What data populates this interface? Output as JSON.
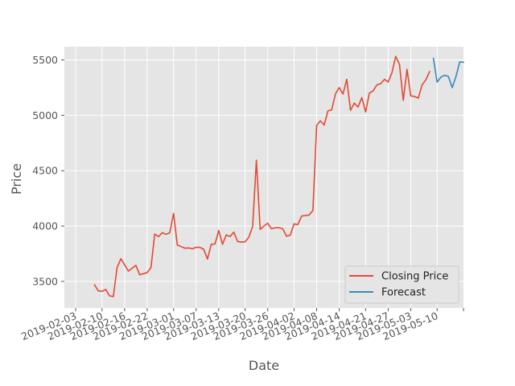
{
  "chart_data": {
    "type": "line",
    "title": "",
    "xlabel": "Date",
    "ylabel": "Price",
    "xlim": [
      "2019-01-31",
      "2019-05-17"
    ],
    "ylim": [
      3260,
      5620
    ],
    "grid": true,
    "legend_position": "bottom-right",
    "x_tick_labels": [
      "2019-02-03",
      "2019-02-10",
      "2019-02-16",
      "2019-02-22",
      "2019-03-01",
      "2019-03-07",
      "2019-03-13",
      "2019-03-20",
      "2019-03-26",
      "2019-04-02",
      "2019-04-08",
      "2019-04-14",
      "2019-04-21",
      "2019-04-27",
      "2019-05-03",
      "2019-05-10"
    ],
    "y_ticks": [
      3500,
      4000,
      4500,
      5000,
      5500
    ],
    "y_tick_labels": [
      "3500",
      "4000",
      "4500",
      "5000",
      "5500"
    ],
    "series": [
      {
        "name": "Closing Price",
        "color": "#E24A33",
        "points": [
          [
            "2019-02-08",
            3470
          ],
          [
            "2019-02-09",
            3415
          ],
          [
            "2019-02-10",
            3410
          ],
          [
            "2019-02-11",
            3428
          ],
          [
            "2019-02-12",
            3370
          ],
          [
            "2019-02-13",
            3363
          ],
          [
            "2019-02-14",
            3625
          ],
          [
            "2019-02-15",
            3705
          ],
          [
            "2019-02-16",
            3650
          ],
          [
            "2019-02-17",
            3593
          ],
          [
            "2019-02-19",
            3645
          ],
          [
            "2019-02-20",
            3560
          ],
          [
            "2019-02-21",
            3570
          ],
          [
            "2019-02-22",
            3580
          ],
          [
            "2019-02-23",
            3625
          ],
          [
            "2019-02-24",
            3928
          ],
          [
            "2019-02-25",
            3905
          ],
          [
            "2019-02-26",
            3940
          ],
          [
            "2019-02-27",
            3925
          ],
          [
            "2019-02-28",
            3940
          ],
          [
            "2019-03-01",
            4115
          ],
          [
            "2019-03-02",
            3828
          ],
          [
            "2019-03-03",
            3815
          ],
          [
            "2019-03-04",
            3800
          ],
          [
            "2019-03-05",
            3802
          ],
          [
            "2019-03-06",
            3795
          ],
          [
            "2019-03-07",
            3808
          ],
          [
            "2019-03-08",
            3808
          ],
          [
            "2019-03-09",
            3790
          ],
          [
            "2019-03-10",
            3702
          ],
          [
            "2019-03-11",
            3835
          ],
          [
            "2019-03-12",
            3838
          ],
          [
            "2019-03-13",
            3960
          ],
          [
            "2019-03-14",
            3835
          ],
          [
            "2019-03-15",
            3920
          ],
          [
            "2019-03-16",
            3905
          ],
          [
            "2019-03-17",
            3945
          ],
          [
            "2019-03-18",
            3860
          ],
          [
            "2019-03-19",
            3855
          ],
          [
            "2019-03-20",
            3858
          ],
          [
            "2019-03-21",
            3900
          ],
          [
            "2019-03-22",
            3995
          ],
          [
            "2019-03-23",
            4595
          ],
          [
            "2019-03-24",
            3970
          ],
          [
            "2019-03-25",
            4000
          ],
          [
            "2019-03-26",
            4025
          ],
          [
            "2019-03-27",
            3975
          ],
          [
            "2019-03-28",
            3985
          ],
          [
            "2019-03-29",
            3985
          ],
          [
            "2019-03-30",
            3975
          ],
          [
            "2019-03-31",
            3908
          ],
          [
            "2019-04-01",
            3918
          ],
          [
            "2019-04-02",
            4020
          ],
          [
            "2019-04-03",
            4012
          ],
          [
            "2019-04-04",
            4090
          ],
          [
            "2019-04-05",
            4095
          ],
          [
            "2019-04-06",
            4100
          ],
          [
            "2019-04-07",
            4140
          ],
          [
            "2019-04-08",
            4910
          ],
          [
            "2019-04-09",
            4950
          ],
          [
            "2019-04-10",
            4912
          ],
          [
            "2019-04-11",
            5040
          ],
          [
            "2019-04-12",
            5050
          ],
          [
            "2019-04-13",
            5195
          ],
          [
            "2019-04-14",
            5250
          ],
          [
            "2019-04-15",
            5192
          ],
          [
            "2019-04-16",
            5325
          ],
          [
            "2019-04-17",
            5045
          ],
          [
            "2019-04-18",
            5110
          ],
          [
            "2019-04-19",
            5075
          ],
          [
            "2019-04-20",
            5160
          ],
          [
            "2019-04-21",
            5030
          ],
          [
            "2019-04-22",
            5200
          ],
          [
            "2019-04-23",
            5220
          ],
          [
            "2019-04-24",
            5275
          ],
          [
            "2019-04-25",
            5285
          ],
          [
            "2019-04-26",
            5325
          ],
          [
            "2019-04-27",
            5300
          ],
          [
            "2019-04-28",
            5385
          ],
          [
            "2019-04-29",
            5532
          ],
          [
            "2019-04-30",
            5460
          ],
          [
            "2019-05-01",
            5135
          ],
          [
            "2019-05-02",
            5415
          ],
          [
            "2019-05-03",
            5175
          ],
          [
            "2019-05-04",
            5170
          ],
          [
            "2019-05-05",
            5155
          ],
          [
            "2019-05-06",
            5275
          ],
          [
            "2019-05-07",
            5320
          ],
          [
            "2019-05-08",
            5395
          ]
        ]
      },
      {
        "name": "Forecast",
        "color": "#348ABD",
        "points": [
          [
            "2019-05-09",
            5515
          ],
          [
            "2019-05-10",
            5300
          ],
          [
            "2019-05-11",
            5345
          ],
          [
            "2019-05-12",
            5362
          ],
          [
            "2019-05-13",
            5350
          ],
          [
            "2019-05-14",
            5250
          ],
          [
            "2019-05-15",
            5350
          ],
          [
            "2019-05-16",
            5482
          ],
          [
            "2019-05-17",
            5480
          ]
        ]
      }
    ]
  }
}
